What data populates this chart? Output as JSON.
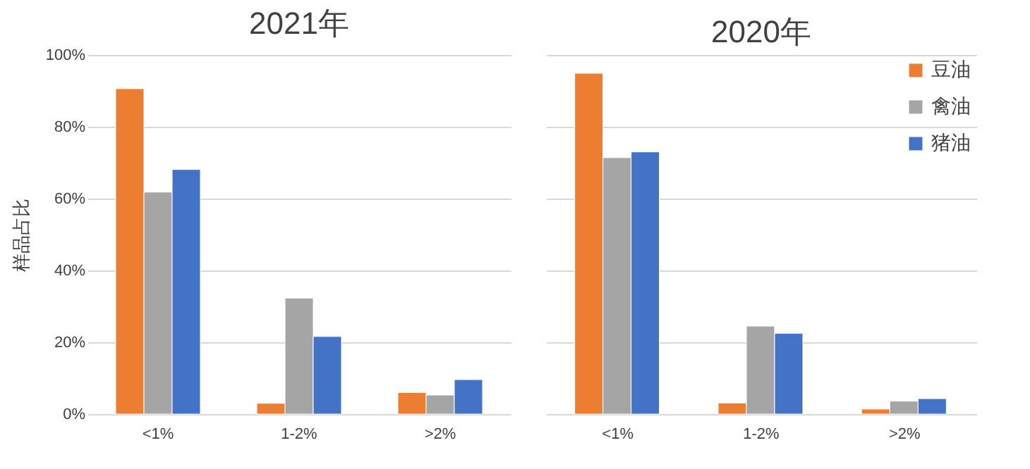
{
  "chart_data": [
    {
      "type": "bar",
      "title": "2021年",
      "ylabel": "样品占比",
      "categories": [
        "<1%",
        "1-2%",
        ">2%"
      ],
      "series": [
        {
          "color": "#ed7d31",
          "values": [
            90.6,
            3.0,
            6.0
          ]
        },
        {
          "color": "#a5a5a5",
          "values": [
            61.8,
            32.3,
            5.3
          ]
        },
        {
          "color": "#4472c4",
          "values": [
            68.1,
            21.6,
            9.6
          ]
        }
      ],
      "ylim": [
        0,
        100
      ],
      "yticks": [
        {
          "value": 0,
          "label": "0%"
        },
        {
          "value": 20,
          "label": "20%"
        },
        {
          "value": 40,
          "label": "40%"
        },
        {
          "value": 60,
          "label": "60%"
        },
        {
          "value": 80,
          "label": "80%"
        },
        {
          "value": 100,
          "label": "100%"
        }
      ],
      "grid": "y"
    },
    {
      "type": "bar",
      "title": "2020年",
      "categories": [
        "<1%",
        "1-2%",
        ">2%"
      ],
      "series": [
        {
          "name": "豆油",
          "color": "#ed7d31",
          "values": [
            94.9,
            3.1,
            1.4
          ]
        },
        {
          "name": "禽油",
          "color": "#a5a5a5",
          "values": [
            71.4,
            24.5,
            3.6
          ]
        },
        {
          "name": "猪油",
          "color": "#4472c4",
          "values": [
            73.0,
            22.5,
            4.3
          ]
        }
      ],
      "ylim": [
        0,
        100
      ],
      "yticks": [
        0,
        20,
        40,
        60,
        80,
        100
      ],
      "grid": "y",
      "legend": "top right",
      "tick_labels": "x"
    }
  ]
}
